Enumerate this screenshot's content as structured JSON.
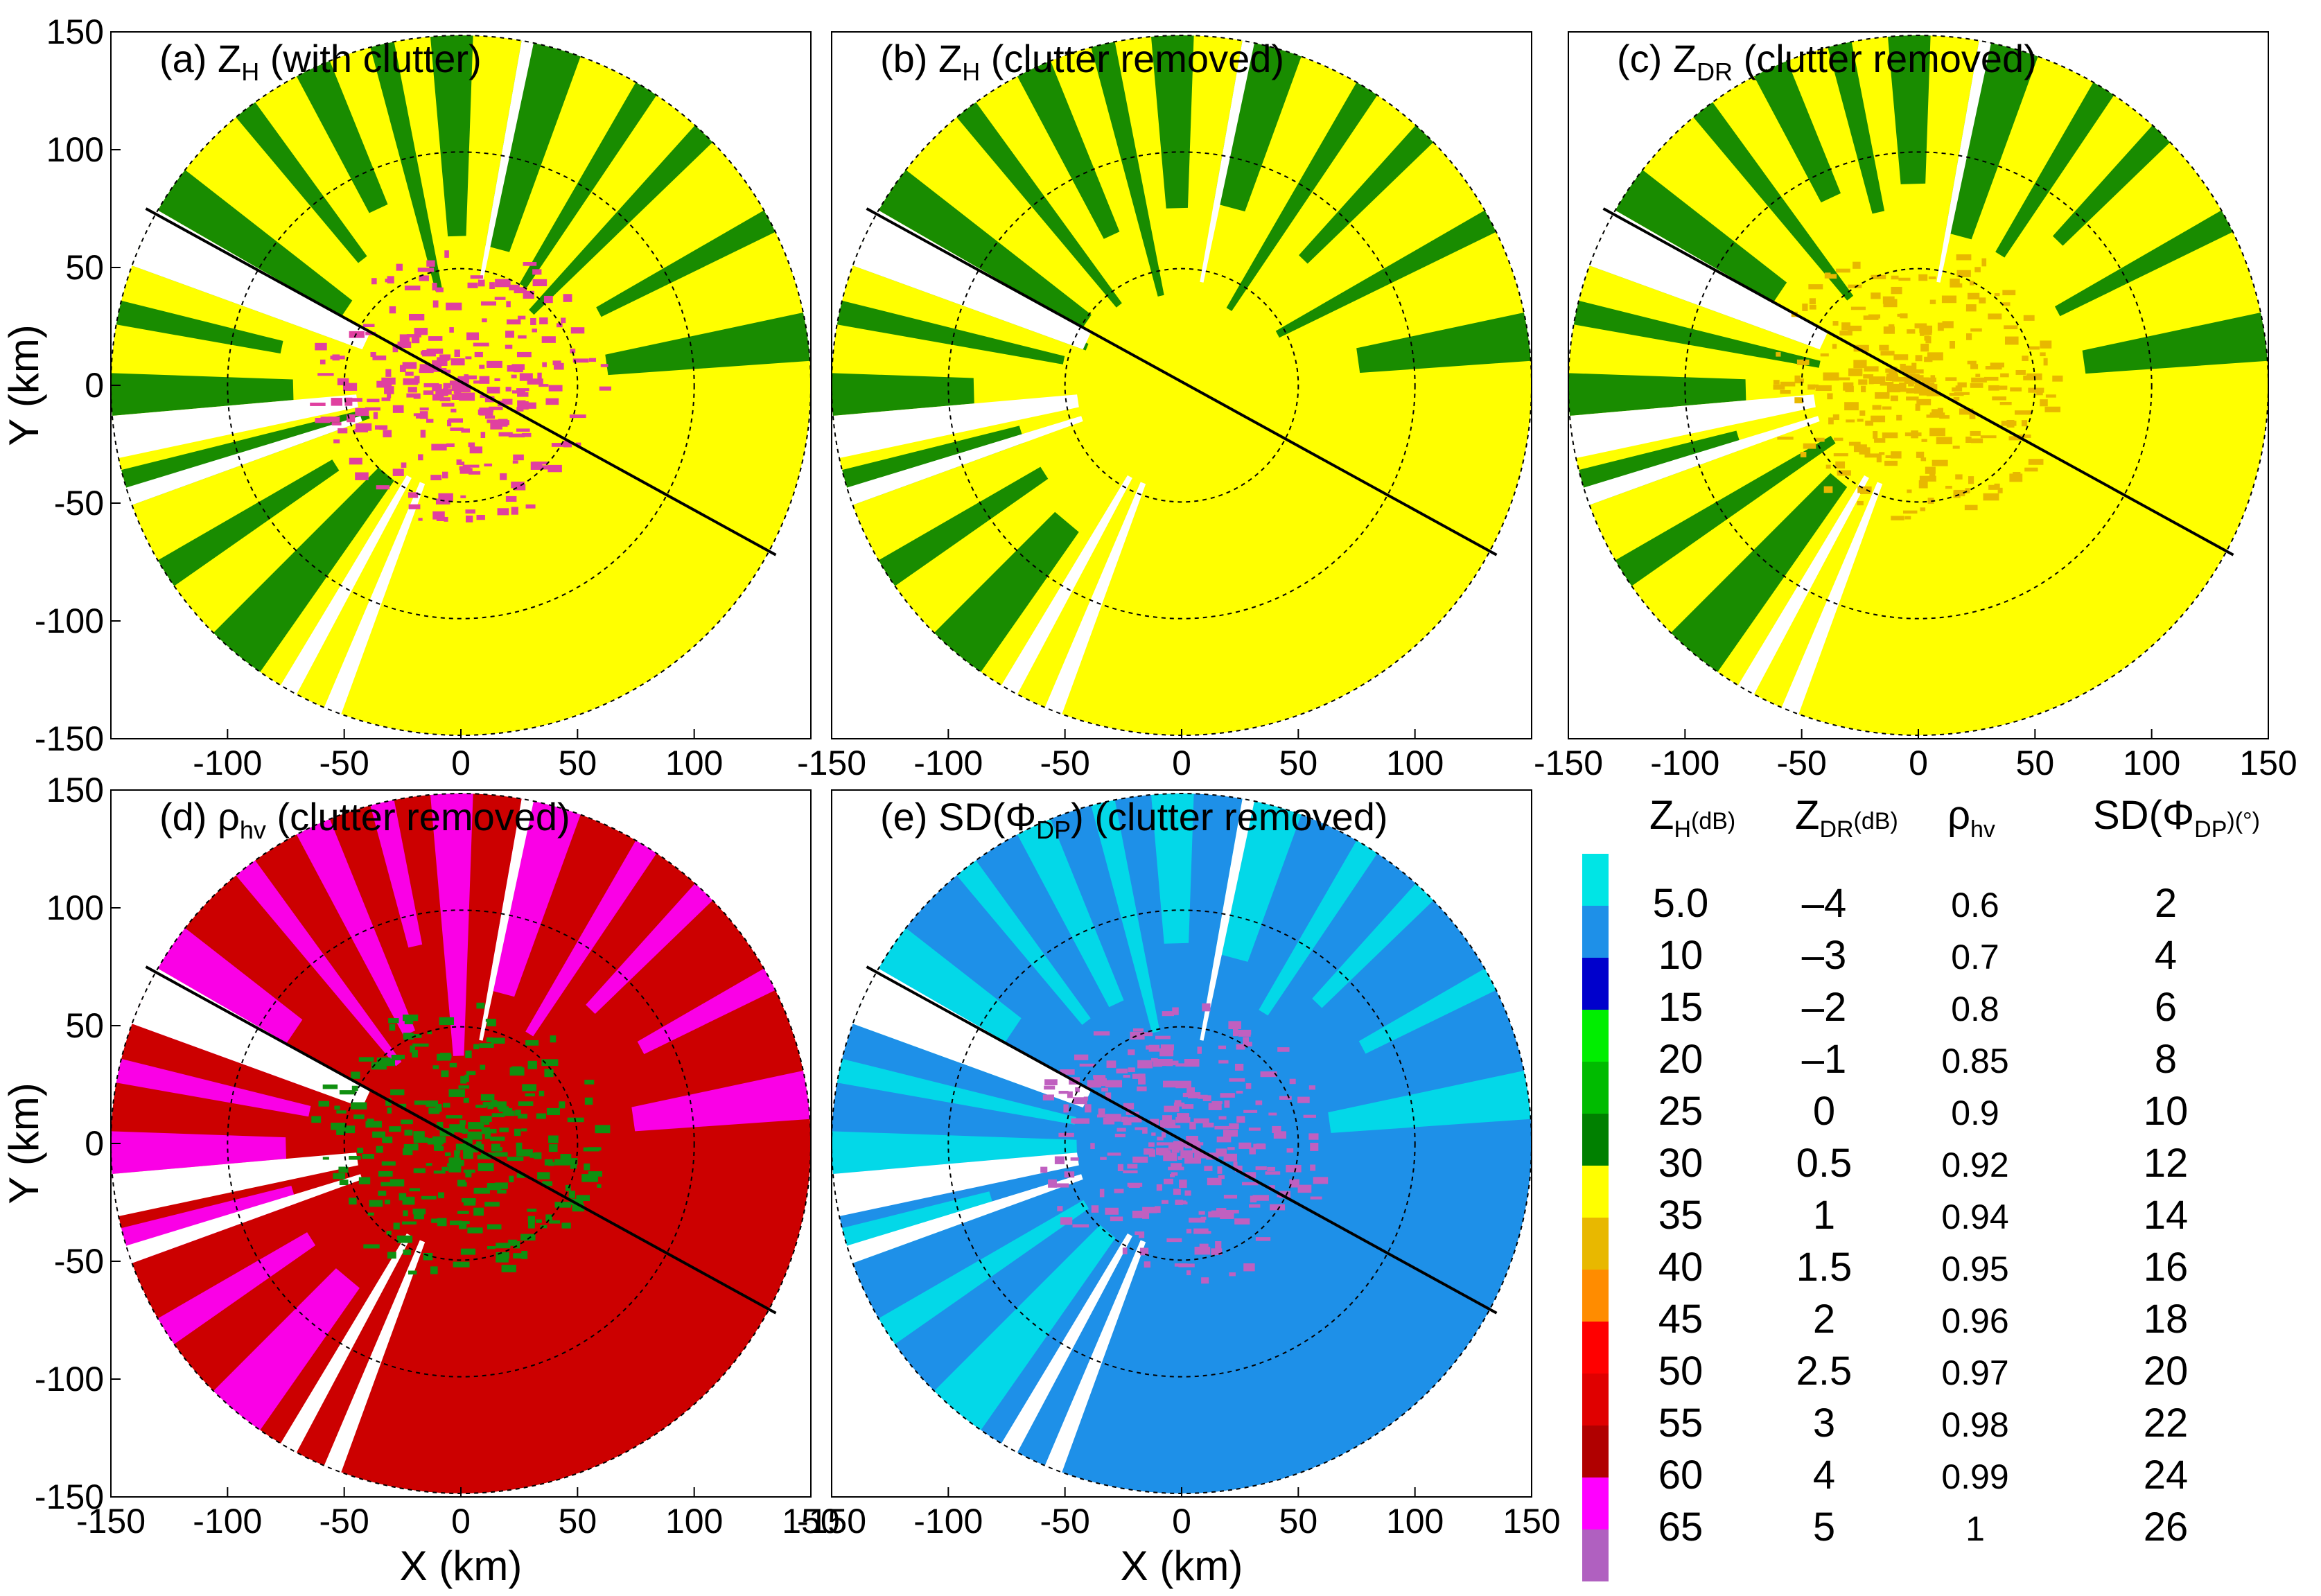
{
  "chart_data": [
    {
      "type": "heatmap",
      "panel": "a",
      "title_prefix": "(a) Z",
      "title_sub": "H",
      "title_rest": " (with clutter)",
      "variable": "ZH",
      "xlim": [
        -150,
        150
      ],
      "ylim": [
        -150,
        150
      ],
      "xticks": [
        "-100",
        "-50",
        "0",
        "50",
        "100"
      ],
      "yticks": [
        "150",
        "100",
        "50",
        "0",
        "-50",
        "-100",
        "-150"
      ],
      "ylabel": "Y (km)",
      "xlabel": "",
      "base_color": "#ffff00",
      "beam_color": "#008000",
      "clutter_color": "#e040a0"
    },
    {
      "type": "heatmap",
      "panel": "b",
      "title_prefix": "(b) Z",
      "title_sub": "H",
      "title_rest": " (clutter removed)",
      "variable": "ZH",
      "xlim": [
        -150,
        150
      ],
      "ylim": [
        -150,
        150
      ],
      "xticks": [
        "-150",
        "-100",
        "-50",
        "0",
        "50",
        "100"
      ],
      "yticks": [],
      "ylabel": "",
      "xlabel": "",
      "base_color": "#ffff00",
      "beam_color": "#008000",
      "clutter_color": ""
    },
    {
      "type": "heatmap",
      "panel": "c",
      "title_prefix": "(c) Z",
      "title_sub": "DR",
      "title_rest": " (clutter removed)",
      "variable": "ZDR",
      "xlim": [
        -150,
        150
      ],
      "ylim": [
        -150,
        150
      ],
      "xticks": [
        "-150",
        "-100",
        "-50",
        "0",
        "50",
        "100",
        "150"
      ],
      "yticks": [],
      "ylabel": "",
      "xlabel": "",
      "base_color": "#ffff00",
      "beam_color": "#008000",
      "clutter_color": "#e8b800"
    },
    {
      "type": "heatmap",
      "panel": "d",
      "title_prefix": "(d) ρ",
      "title_sub": "hv",
      "title_rest": " (clutter removed)",
      "variable": "rho_hv",
      "xlim": [
        -150,
        150
      ],
      "ylim": [
        -150,
        150
      ],
      "xticks": [
        "-150",
        "-100",
        "-50",
        "0",
        "50",
        "100",
        "150"
      ],
      "yticks": [
        "150",
        "100",
        "50",
        "0",
        "-50",
        "-100",
        "-150"
      ],
      "ylabel": "Y (km)",
      "xlabel": "X (km)",
      "base_color": "#cc0000",
      "beam_color": "#ff00ff",
      "clutter_color": "#109010"
    },
    {
      "type": "heatmap",
      "panel": "e",
      "title_prefix": "(e) SD(Φ",
      "title_sub": "DP",
      "title_rest": ") (clutter removed)",
      "variable": "SD_PhiDP",
      "xlim": [
        -150,
        150
      ],
      "ylim": [
        -150,
        150
      ],
      "xticks": [
        "-150",
        "-100",
        "-50",
        "0",
        "50",
        "100",
        "150"
      ],
      "yticks": [],
      "ylabel": "",
      "xlabel": "X (km)",
      "base_color": "#1e90e8",
      "beam_color": "#00e0e8",
      "clutter_color": "#c060c0"
    }
  ],
  "legend": {
    "headers": [
      {
        "main": "Z",
        "sub": "H",
        "unit": "(dB)"
      },
      {
        "main": "Z",
        "sub": "DR",
        "unit": "(dB)"
      },
      {
        "main": "ρ",
        "sub": "hv",
        "unit": ""
      },
      {
        "main": "SD(Φ",
        "sub": "DP",
        "unit": ")(°)"
      }
    ],
    "colors": [
      "#00e5e5",
      "#1e90e8",
      "#0000cc",
      "#00ee00",
      "#00bb00",
      "#008000",
      "#ffff00",
      "#e8b800",
      "#ff8c00",
      "#ff0000",
      "#e00000",
      "#b00000",
      "#ff00ff",
      "#b060c0"
    ],
    "zh": [
      "5.0",
      "10",
      "15",
      "20",
      "25",
      "30",
      "35",
      "40",
      "45",
      "50",
      "55",
      "60",
      "65"
    ],
    "zdr": [
      "–4",
      "–3",
      "–2",
      "–1",
      "0",
      "0.5",
      "1",
      "1.5",
      "2",
      "2.5",
      "3",
      "4",
      "5"
    ],
    "rhohv": [
      "0.6",
      "0.7",
      "0.8",
      "0.85",
      "0.9",
      "0.92",
      "0.94",
      "0.95",
      "0.96",
      "0.97",
      "0.98",
      "0.99",
      "1"
    ],
    "sdphi": [
      "2",
      "4",
      "6",
      "8",
      "10",
      "12",
      "14",
      "16",
      "18",
      "20",
      "22",
      "24",
      "26"
    ]
  }
}
